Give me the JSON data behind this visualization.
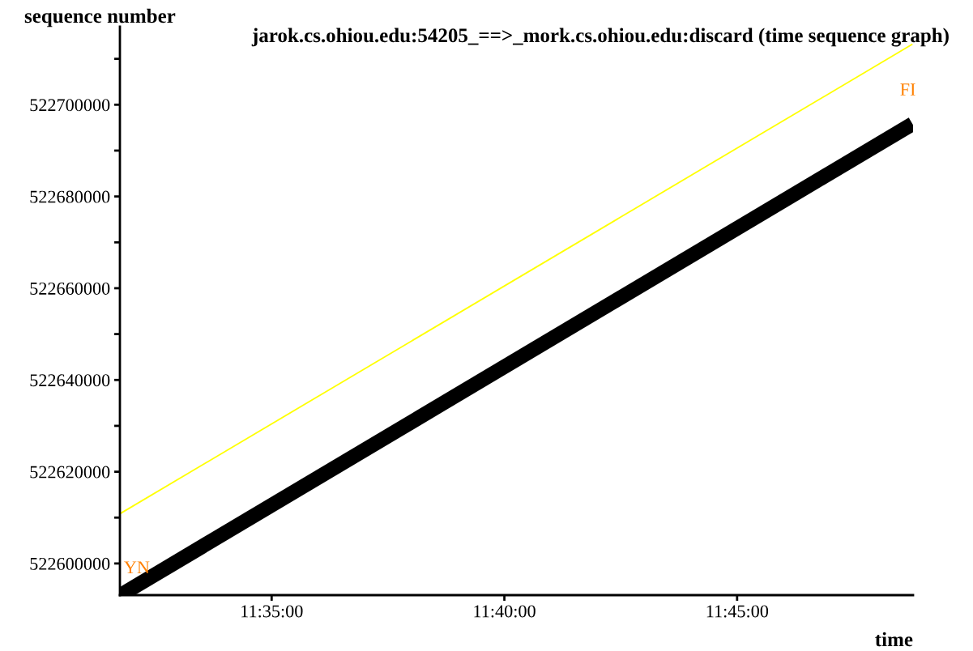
{
  "chart_data": {
    "type": "line",
    "title": "jarok.cs.ohiou.edu:54205_==>_mork.cs.ohiou.edu:discard (time sequence graph)",
    "xlabel": "time",
    "x": [
      11.5292,
      11.8128
    ],
    "ylabel": "sequence number",
    "series": [
      {
        "color": "#ffff00",
        "values": [
          522610900,
          522713200
        ]
      },
      {
        "color": "#000000",
        "values": [
          522593100,
          522695800
        ]
      }
    ],
    "annotations": [
      {
        "text": "YN",
        "x": 11.5292,
        "y": 522593100
      },
      {
        "text": "FI",
        "x": 11.8128,
        "y": 522695800
      }
    ],
    "xlim": [
      11.529,
      11.813
    ],
    "ylim": [
      522593100,
      522717000
    ],
    "xticks": [
      {
        "value": 11.583333,
        "label": "11:35:00"
      },
      {
        "value": 11.666667,
        "label": "11:40:00"
      },
      {
        "value": 11.75,
        "label": "11:45:00"
      }
    ],
    "yticks": [
      522600000,
      {
        "value": 522610000,
        "label": null
      },
      522620000,
      {
        "value": 522630000,
        "label": null
      },
      522640000,
      {
        "value": 522650000,
        "label": null
      },
      522660000,
      {
        "value": 522670000,
        "label": null
      },
      522680000,
      {
        "value": 522690000,
        "label": null
      },
      522700000,
      {
        "value": 522710000,
        "label": null
      }
    ],
    "grid": false,
    "legend": false
  }
}
